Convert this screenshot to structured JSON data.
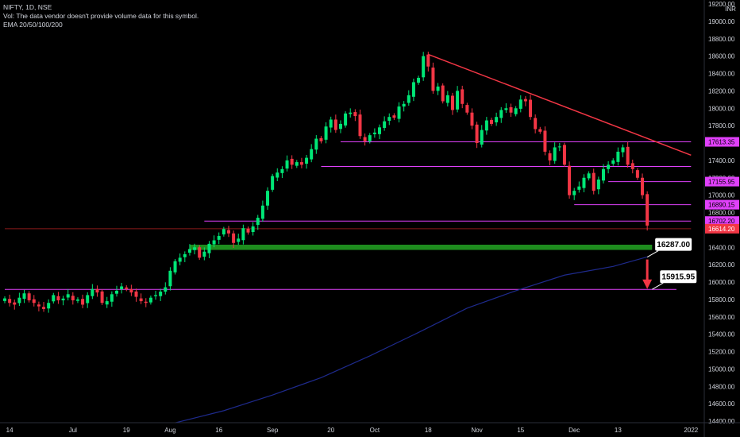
{
  "legend": {
    "symbol": "NIFTY, 1D, NSE",
    "volume_note": "Vol: The data vendor doesn't provide volume data for this symbol.",
    "ema": "EMA 20/50/100/200"
  },
  "chart_data": {
    "type": "candlestick",
    "currency": "INR",
    "ylim": [
      14400,
      19200
    ],
    "y_ticks": [
      14400,
      14600,
      14800,
      15000,
      15200,
      15400,
      15600,
      15800,
      16000,
      16200,
      16400,
      16600,
      16800,
      17000,
      17200,
      17400,
      17600,
      17800,
      18000,
      18200,
      18400,
      18600,
      18800,
      19000,
      19200
    ],
    "x_labels": [
      {
        "label": "14",
        "index": 1
      },
      {
        "label": "Jul",
        "index": 14
      },
      {
        "label": "19",
        "index": 25
      },
      {
        "label": "Aug",
        "index": 34
      },
      {
        "label": "16",
        "index": 44
      },
      {
        "label": "Sep",
        "index": 55
      },
      {
        "label": "20",
        "index": 67
      },
      {
        "label": "Oct",
        "index": 76
      },
      {
        "label": "18",
        "index": 87
      },
      {
        "label": "Nov",
        "index": 97
      },
      {
        "label": "15",
        "index": 106
      },
      {
        "label": "Dec",
        "index": 117
      },
      {
        "label": "13",
        "index": 126
      },
      {
        "label": "2022",
        "index": 141
      }
    ],
    "closes": [
      15812,
      15760,
      15740,
      15820,
      15870,
      15790,
      15760,
      15720,
      15690,
      15760,
      15850,
      15790,
      15810,
      15860,
      15790,
      15800,
      15740,
      15850,
      15920,
      15880,
      15760,
      15780,
      15860,
      15900,
      15950,
      15920,
      15880,
      15830,
      15780,
      15760,
      15820,
      15850,
      15890,
      15940,
      16130,
      16240,
      16280,
      16320,
      16380,
      16400,
      16280,
      16350,
      16440,
      16480,
      16530,
      16610,
      16560,
      16450,
      16500,
      16620,
      16570,
      16640,
      16740,
      16880,
      17050,
      17220,
      17260,
      17300,
      17400,
      17350,
      17380,
      17350,
      17430,
      17530,
      17650,
      17620,
      17790,
      17870,
      17750,
      17820,
      17940,
      17950,
      17910,
      17680,
      17620,
      17690,
      17720,
      17780,
      17850,
      17900,
      17890,
      18020,
      18050,
      18150,
      18300,
      18350,
      18600,
      18480,
      18200,
      18250,
      18080,
      18150,
      17980,
      18200,
      18050,
      17950,
      17800,
      17600,
      17750,
      17860,
      17820,
      17900,
      17980,
      18000,
      17950,
      18000,
      18100,
      18080,
      17900,
      17760,
      17730,
      17500,
      17400,
      17550,
      17560,
      17350,
      17000,
      17050,
      17100,
      17200,
      17250,
      17050,
      17180,
      17300,
      17350,
      17400,
      17500,
      17550,
      17350,
      17300,
      17200,
      17000,
      16650
    ],
    "ema_200": [
      {
        "index": 35,
        "value": 14380
      },
      {
        "index": 45,
        "value": 14520
      },
      {
        "index": 55,
        "value": 14700
      },
      {
        "index": 65,
        "value": 14900
      },
      {
        "index": 75,
        "value": 15150
      },
      {
        "index": 85,
        "value": 15420
      },
      {
        "index": 95,
        "value": 15700
      },
      {
        "index": 105,
        "value": 15900
      },
      {
        "index": 115,
        "value": 16080
      },
      {
        "index": 125,
        "value": 16180
      },
      {
        "index": 132,
        "value": 16290
      }
    ],
    "trendline": {
      "start": {
        "index": 87,
        "value": 18620
      },
      "end": {
        "index": 141,
        "value": 17460
      }
    },
    "horizontal_lines": [
      {
        "value": 17613.35,
        "from_index": 69,
        "to_index": 141,
        "color": "#e040fb"
      },
      {
        "value": 17330,
        "from_index": 65,
        "to_index": 141,
        "color": "#e040fb"
      },
      {
        "value": 17155.95,
        "from_index": 124,
        "to_index": 141,
        "color": "#e040fb"
      },
      {
        "value": 16890.15,
        "from_index": 117,
        "to_index": 141,
        "color": "#e040fb"
      },
      {
        "value": 16702.2,
        "from_index": 41,
        "to_index": 141,
        "color": "#e040fb"
      },
      {
        "value": 16614.2,
        "from_index": 0,
        "to_index": 141,
        "color": "#8b1a1a"
      },
      {
        "value": 15915.95,
        "from_index": 0,
        "to_index": 138,
        "color": "#e040fb"
      }
    ],
    "support_zone": {
      "from_index": 38,
      "to_index": 133,
      "low": 16370,
      "high": 16430,
      "color": "#1e8c1e"
    },
    "price_tags": [
      {
        "label": "17613.35",
        "value": 17613.35,
        "color": "#e040fb",
        "text_color": "#000000"
      },
      {
        "label": "17155.95",
        "value": 17155.95,
        "color": "#e040fb",
        "text_color": "#000000"
      },
      {
        "label": "16890.15",
        "value": 16890.15,
        "color": "#e040fb",
        "text_color": "#000000"
      },
      {
        "label": "16702.20",
        "value": 16702.2,
        "color": "#e040fb",
        "text_color": "#000000"
      },
      {
        "label": "16614.20",
        "value": 16614.2,
        "color": "#f23645",
        "text_color": "#ffffff"
      }
    ],
    "annotations": [
      {
        "text": "16287.00",
        "value": 16287,
        "anchor_index": 132
      },
      {
        "text": "15915.95",
        "value": 15915.95,
        "anchor_index": 133
      }
    ],
    "arrow": {
      "index": 132,
      "from_value": 16260,
      "to_value": 15920,
      "color": "#f23645"
    },
    "colors": {
      "up": "#22ab94",
      "down": "#f23645",
      "up_bright": "#00e676",
      "ema": "#1e2a8c",
      "trend": "#f23645",
      "axis": "#d1d4dc"
    }
  }
}
